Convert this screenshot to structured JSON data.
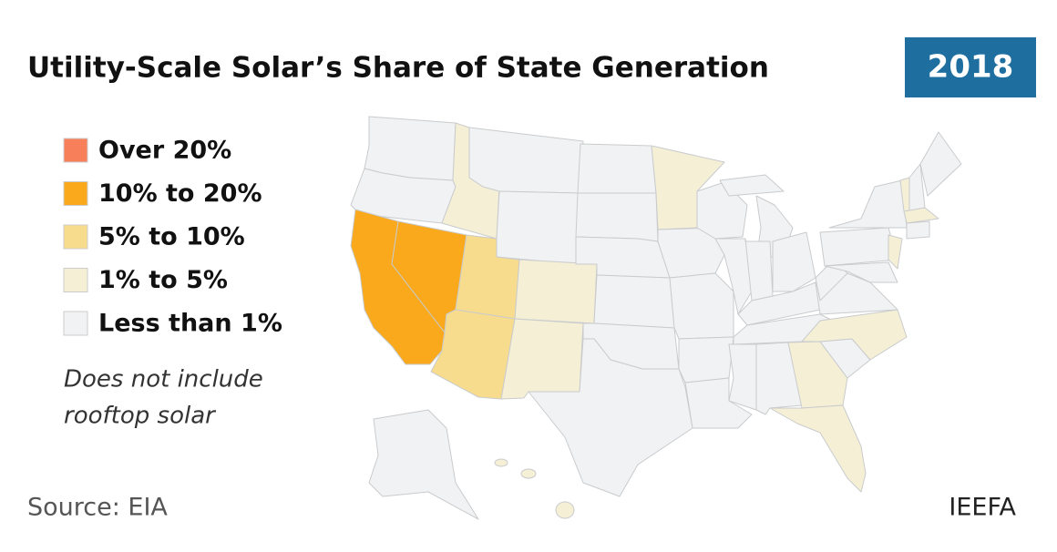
{
  "header": {
    "title": "Utility-Scale Solar’s Share of State Generation",
    "year": "2018"
  },
  "legend": {
    "items": [
      {
        "label": "Over 20%",
        "color": "#f7805a"
      },
      {
        "label": "10% to 20%",
        "color": "#f9a91b"
      },
      {
        "label": "5% to 10%",
        "color": "#f8dc8e"
      },
      {
        "label": "1% to 5%",
        "color": "#f5efd6"
      },
      {
        "label": "Less than 1%",
        "color": "#f1f2f3"
      }
    ]
  },
  "note": [
    "Does not include",
    "rooftop solar"
  ],
  "footer": {
    "source": "Source: EIA",
    "brand": "IEEFA"
  }
}
